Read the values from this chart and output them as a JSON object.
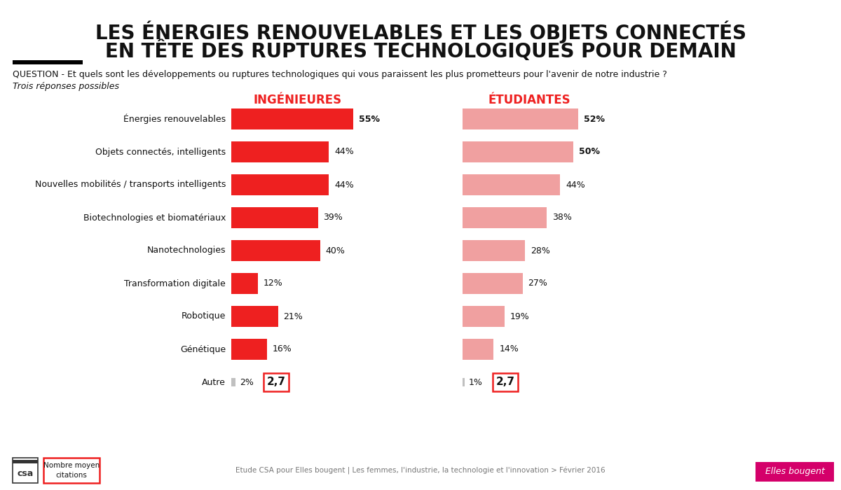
{
  "title_line1": "LES ÉNERGIES RENOUVELABLES ET LES OBJETS CONNECTÉS",
  "title_line2": "EN TÊTE DES RUPTURES TECHNOLOGIQUES POUR DEMAIN",
  "question": "QUESTION - Et quels sont les développements ou ruptures technologiques qui vous paraissent les plus prometteurs pour l'avenir de notre industrie ?",
  "sub_question": "Trois réponses possibles",
  "col1_label": "INGÉNIEURES",
  "col2_label": "ÉTUDIANTES",
  "categories": [
    "Énergies renouvelables",
    "Objets connectés, intelligents",
    "Nouvelles mobilités / transports intelligents",
    "Biotechnologies et biomatériaux",
    "Nanotechnologies",
    "Transformation digitale",
    "Robotique",
    "Génétique",
    "Autre"
  ],
  "ingenieures": [
    55,
    44,
    44,
    39,
    40,
    12,
    21,
    16,
    2
  ],
  "etudiantes": [
    52,
    50,
    44,
    38,
    28,
    27,
    19,
    14,
    1
  ],
  "bold_ingenieures": [
    true,
    false,
    false,
    false,
    false,
    false,
    false,
    false,
    false
  ],
  "bold_etudiantes": [
    true,
    true,
    false,
    false,
    false,
    false,
    false,
    false,
    false
  ],
  "color_ingenieures": "#EE2020",
  "color_etudiantes": "#F0A0A0",
  "color_autre_bar": "#C0C0C0",
  "color_col_label": "#EE2020",
  "background_color": "#FFFFFF",
  "footer_text": "Etude CSA pour Elles bougent | Les femmes, l'industrie, la technologie et l'innovation > Février 2016",
  "moyenne_citations": "2,7",
  "scale_max": 60.0
}
